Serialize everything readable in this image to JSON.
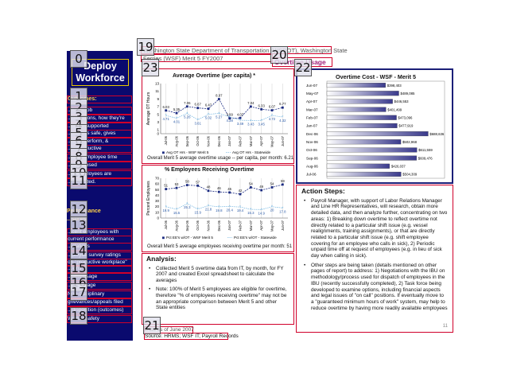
{
  "sidebar": {
    "title_line1": "Deploy",
    "title_line2": "Workforce",
    "items": [
      "Outcomes:",
      "...know job",
      "...pectations, how they're",
      "...& are supported",
      "...place is safe, gives",
      "...ity to perform, &",
      "...rs productive",
      "...ons: Employee time",
      "...ent is used",
      "...y. Employees are",
      "...motivated.",
      "Performance",
      "...sures",
      "...cent employees with",
      "current performance",
      "...ctations",
      "...ployee survey ratings",
      "on \"productive workplace\"",
      "...ions",
      "...time usage",
      "...ave usage",
      "Non-disciplinary",
      "grievances/appeals filed",
      "...disposition (outcomes)",
      "Worker safety"
    ]
  },
  "header": {
    "line1": "Washington State Department of Transportation (WSDOT), Washington State",
    "line2": "Ferries (WSF) Merit 5 FY2007",
    "overtime_usage": "Overtime Usage"
  },
  "avg_chart": {
    "title": "Average Overtime (per capita) *",
    "ylabel": "Average OT Hours",
    "legend_a": "Avg OT Hrs - WSF Merit 5",
    "legend_b": "Avg OT Hrs - Statewide",
    "caption": "Overall Merit 5 average overtime usage -- per capita, per month: 6.21"
  },
  "pct_chart": {
    "title": "% Employees Receiving Overtime",
    "ylabel": "Percent Employees",
    "legend_a": "Pct EE's w/OT - WSF Merit 5",
    "legend_b": "Pct EE's w/OT - Statewide",
    "caption": "Overall Merit 5 average employees receiving overtime per month: 51"
  },
  "cost_chart": {
    "title": "Overtime Cost - WSF - Merit 5"
  },
  "chart_data": [
    {
      "type": "line",
      "title": "Average Overtime (per capita) *",
      "ylabel": "Average OT Hours",
      "x": [
        "Jul-06",
        "Aug-06",
        "Sep-06",
        "Oct-06",
        "Nov-06",
        "Dec-06",
        "Jan-07",
        "Feb-07",
        "Mar-07",
        "Apr-07",
        "May-07",
        "Jun-07"
      ],
      "ylim": [
        0,
        13
      ],
      "yticks": [
        0,
        1,
        3,
        5,
        7,
        9,
        11,
        13
      ],
      "series": [
        {
          "name": "Avg OT Hrs - WSF Merit 5",
          "values": [
            6.03,
            5.35,
            7.06,
            6.67,
            6.47,
            8.97,
            3.99,
            4.07,
            7.04,
            6.33,
            6.07,
            6.77
          ]
        },
        {
          "name": "Avg OT Hrs - Statewide",
          "values": [
            4.71,
            4.01,
            5.26,
            3.61,
            5.02,
            5.27,
            4.38,
            3.49,
            3.43,
            3.45,
            4.72,
            4.32
          ]
        }
      ]
    },
    {
      "type": "line",
      "title": "% Employees Receiving Overtime",
      "ylabel": "Percent Employees",
      "x": [
        "Jul-06",
        "Aug-06",
        "Sep-06",
        "Oct-06",
        "Nov-06",
        "Dec-06",
        "Jan-07",
        "Feb-07",
        "Mar-07",
        "Apr-07",
        "May-07",
        "Jun-07"
      ],
      "ylim": [
        0,
        70
      ],
      "yticks": [
        0,
        10,
        20,
        30,
        40,
        50,
        60,
        70
      ],
      "series": [
        {
          "name": "Pct EE's w/OT - WSF Merit 5",
          "values": [
            51,
            53,
            58,
            57,
            48,
            46,
            45,
            42,
            54,
            49,
            54,
            59
          ]
        },
        {
          "name": "Pct EE's w/OT - Statewide",
          "values": [
            19.9,
            15.5,
            25.3,
            15.9,
            21.8,
            19.8,
            20.4,
            19.4,
            15.3,
            14.9,
            20,
            17.8
          ]
        }
      ]
    },
    {
      "type": "bar",
      "orientation": "horizontal",
      "title": "Overtime Cost - WSF - Merit 5",
      "categories": [
        "Jun-07",
        "May-07",
        "Apr-07",
        "Mar-07",
        "Feb-07",
        "Jan-07",
        "Dec-06",
        "Nov-06",
        "Oct-06",
        "Sep-06",
        "Aug-06",
        "Jul-06"
      ],
      "values": [
        398403,
        489085,
        446553,
        401499,
        473096,
        477919,
        688636,
        502968,
        611559,
        609476,
        426037,
        504309
      ],
      "value_labels": [
        "$398,403",
        "$489,085",
        "$446,553",
        "$401,499",
        "$473,096",
        "$477,919",
        "$688,636",
        "$502,968",
        "$611,559",
        "$609,476",
        "$426,037",
        "$504,309"
      ],
      "xlim": [
        0,
        800000
      ]
    }
  ],
  "analysis": {
    "heading": "Analysis:",
    "bullets": [
      "Collected Merit 5 overtime data from IT, by month, for FY 2007 and created Excel spreadsheet to calculate the averages",
      "Note:  100% of Merit 5 employees are eligible for overtime, therefore \"% of employees receiving overtime\" may not be an appropriate comparison between Merit 5 and other State entities"
    ]
  },
  "action": {
    "heading": "Action Steps:",
    "bullets": [
      "Payroll Manager, with support of Labor Relations Manager and Line HR Representatives, will research, obtain more detailed data, and then analyze further, concentrating on two areas:  1)  Breaking down overtime to reflect overtime not directly related to a particular shift issue (e.g. vessel realignments, training assignments), or that are directly related to a particular shift issue (e.g. shift employee covering for an employee who calls in sick), 2)  Periodic unpaid time off at request of employees (e.g. in lieu of sick day when calling in sick).",
      "Other steps are being taken (details mentioned on other pages of report) to address:  1)  Negotiations with the IBU on methodology/process used for dispatch of employees in the IBU (recently successfully completed), 2)  Task force being developed to examine options, including financial aspects and legal issues of \"on call\" positions.  If eventually move to a \"guaranteed minimum hours of work\" system, may help to reduce overtime by having more readily available employees"
    ],
    "page_number": "11"
  },
  "footer": {
    "date": "Data as of June 2007",
    "source": "Source:  HRMS; WSF IT; Payroll Records"
  },
  "tags": [
    "0",
    "1",
    "2",
    "3",
    "4",
    "5",
    "6",
    "7",
    "8",
    "9",
    "10",
    "11",
    "12",
    "13",
    "14",
    "15",
    "16",
    "17",
    "18",
    "19",
    "20",
    "21",
    "22",
    "23"
  ]
}
